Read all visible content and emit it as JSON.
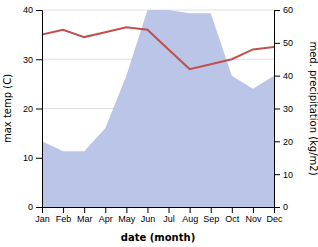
{
  "chart_data": {
    "type": "line",
    "x_label": "date (month)",
    "y_label": "max temp (C)",
    "y2_label": "med. precipitation (kg/m2)",
    "categories": [
      "Jan",
      "Feb",
      "Mar",
      "Apr",
      "May",
      "Jun",
      "Jul",
      "Aug",
      "Sep",
      "Oct",
      "Nov",
      "Dec"
    ],
    "series": [
      {
        "type": "area",
        "axis": "y2",
        "color": "#bbc5e8",
        "values": [
          20,
          17,
          17,
          24,
          40,
          60,
          60,
          59,
          59,
          40,
          36,
          40
        ]
      },
      {
        "type": "line",
        "color": "#c0504d",
        "values": [
          35,
          36,
          34.5,
          35.5,
          36.5,
          36,
          32,
          28,
          29,
          30,
          32,
          32.5
        ]
      }
    ],
    "ylim": [
      0,
      40
    ],
    "yticks": [
      0,
      10,
      20,
      30,
      40
    ],
    "y2lim": [
      0,
      60
    ],
    "y2ticks": [
      0,
      10,
      20,
      30,
      40,
      50,
      60
    ],
    "grid": true
  }
}
